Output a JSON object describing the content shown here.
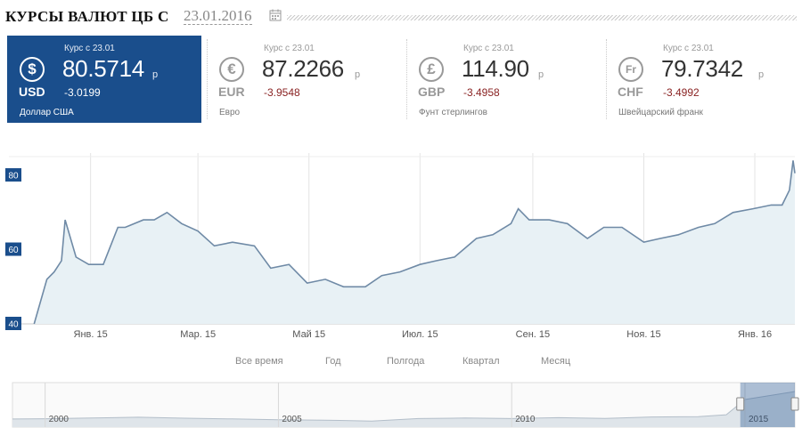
{
  "header": {
    "title": "КУРСЫ ВАЛЮТ ЦБ С",
    "date": "23.01.2016"
  },
  "cards": [
    {
      "code": "USD",
      "label": "Курс с 23.01",
      "value": "80.5714",
      "unit": "р",
      "change": "-3.0199",
      "name": "Доллар США",
      "icon": "dollar-icon",
      "symbol": "$",
      "active": true
    },
    {
      "code": "EUR",
      "label": "Курс с 23.01",
      "value": "87.2266",
      "unit": "р",
      "change": "-3.9548",
      "name": "Евро",
      "icon": "euro-icon",
      "symbol": "€",
      "active": false
    },
    {
      "code": "GBP",
      "label": "Курс с 23.01",
      "value": "114.90",
      "unit": "р",
      "change": "-3.4958",
      "name": "Фунт стерлингов",
      "icon": "pound-icon",
      "symbol": "£",
      "active": false
    },
    {
      "code": "CHF",
      "label": "Курс с 23.01",
      "value": "79.7342",
      "unit": "р",
      "change": "-3.4992",
      "name": "Швейцарский франк",
      "icon": "franc-icon",
      "symbol": "Fr",
      "active": false
    }
  ],
  "range_buttons": [
    "Все время",
    "Год",
    "Полгода",
    "Квартал",
    "Месяц"
  ],
  "colors": {
    "accent": "#1a4e8c",
    "line": "#6f8aa6",
    "area": "#e8f1f5",
    "negative": "#8a2323"
  },
  "chart_data": {
    "type": "area",
    "series": [
      {
        "x": [
          "2014-12-01",
          "2014-12-08",
          "2014-12-12",
          "2014-12-16",
          "2014-12-18",
          "2014-12-24",
          "2014-12-31",
          "2015-01-08",
          "2015-01-16",
          "2015-01-20",
          "2015-01-30",
          "2015-02-05",
          "2015-02-12",
          "2015-02-20",
          "2015-03-01",
          "2015-03-10",
          "2015-03-20",
          "2015-04-01",
          "2015-04-10",
          "2015-04-20",
          "2015-04-30",
          "2015-05-10",
          "2015-05-20",
          "2015-06-01",
          "2015-06-10",
          "2015-06-20",
          "2015-07-01",
          "2015-07-10",
          "2015-07-20",
          "2015-08-01",
          "2015-08-10",
          "2015-08-20",
          "2015-08-24",
          "2015-08-30",
          "2015-09-10",
          "2015-09-20",
          "2015-10-01",
          "2015-10-10",
          "2015-10-20",
          "2015-11-01",
          "2015-11-10",
          "2015-11-20",
          "2015-12-01",
          "2015-12-10",
          "2015-12-20",
          "2015-12-31",
          "2016-01-10",
          "2016-01-16",
          "2016-01-20",
          "2016-01-22",
          "2016-01-23"
        ],
        "values": [
          40,
          52,
          54,
          57,
          68,
          58,
          56,
          56,
          66,
          66,
          68,
          68,
          70,
          67,
          65,
          61,
          62,
          61,
          55,
          56,
          51,
          52,
          50,
          50,
          53,
          54,
          56,
          57,
          58,
          63,
          64,
          67,
          71,
          68,
          68,
          67,
          63,
          66,
          66,
          62,
          63,
          64,
          66,
          67,
          70,
          71,
          72,
          72,
          76,
          84,
          80.57
        ]
      }
    ],
    "x_ticks": [
      "Янв. 15",
      "Мар. 15",
      "Май 15",
      "Июл. 15",
      "Сен. 15",
      "Ноя. 15",
      "Янв. 16"
    ],
    "y_ticks": [
      "40",
      "60",
      "80"
    ],
    "ylim": [
      40,
      86
    ],
    "grid": true,
    "navigator": {
      "x_ticks": [
        "2000",
        "2005",
        "2010",
        "2015"
      ],
      "values": [
        28.5,
        29,
        30.5,
        31.8,
        30,
        28.7,
        27.2,
        26.3,
        24.5,
        29.4,
        30.4,
        29.3,
        31,
        29.5,
        32.3,
        33,
        36.5,
        65,
        80
      ]
    }
  }
}
